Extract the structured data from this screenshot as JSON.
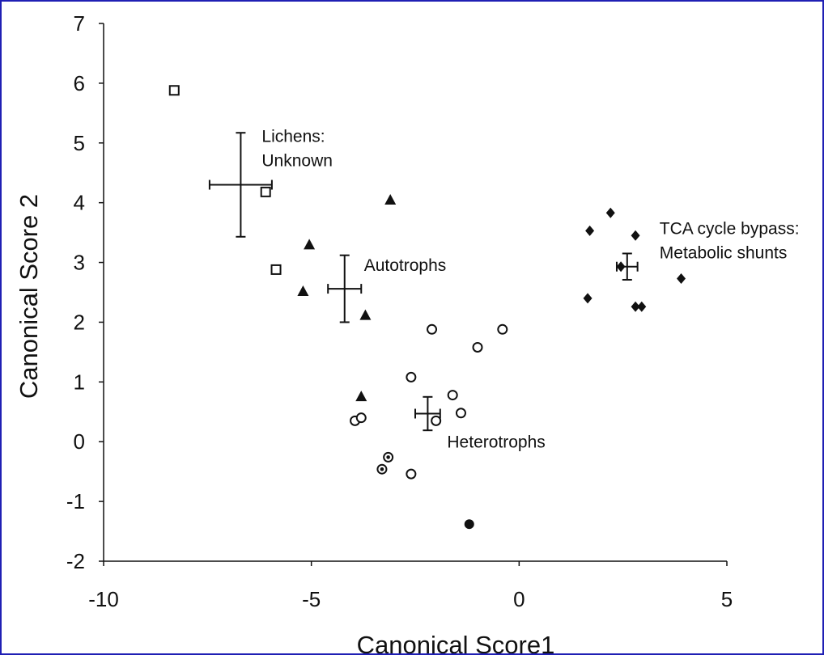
{
  "chart_data": {
    "type": "scatter",
    "xlabel": "Canonical Score1",
    "ylabel": "Canonical Score 2",
    "xlim": [
      -10,
      5
    ],
    "ylim": [
      -2,
      7
    ],
    "xticks": [
      "-10",
      "-5",
      "0",
      "5"
    ],
    "yticks": [
      "-2",
      "-1",
      "0",
      "1",
      "2",
      "3",
      "4",
      "5",
      "6",
      "7"
    ],
    "grid": false,
    "series": [
      {
        "marker": "open-square",
        "color": "#111111",
        "points": [
          [
            -8.3,
            5.88
          ],
          [
            -6.1,
            4.18
          ],
          [
            -5.85,
            2.88
          ]
        ]
      },
      {
        "marker": "filled-triangle",
        "color": "#111111",
        "points": [
          [
            -3.1,
            4.05
          ],
          [
            -5.05,
            3.3
          ],
          [
            -5.2,
            2.52
          ],
          [
            -3.7,
            2.12
          ],
          [
            -3.8,
            0.76
          ]
        ]
      },
      {
        "marker": "open-circle",
        "color": "#111111",
        "points": [
          [
            -2.1,
            1.88
          ],
          [
            -0.4,
            1.88
          ],
          [
            -1.0,
            1.58
          ],
          [
            -2.6,
            1.08
          ],
          [
            -1.6,
            0.78
          ],
          [
            -1.4,
            0.48
          ],
          [
            -2.0,
            0.35
          ],
          [
            -3.95,
            0.35
          ],
          [
            -3.8,
            0.4
          ],
          [
            -2.6,
            -0.54
          ]
        ]
      },
      {
        "marker": "dotted-circle",
        "color": "#111111",
        "points": [
          [
            -3.15,
            -0.26
          ],
          [
            -3.3,
            -0.46
          ]
        ]
      },
      {
        "marker": "filled-circle",
        "color": "#111111",
        "points": [
          [
            -1.2,
            -1.38
          ]
        ]
      },
      {
        "marker": "filled-diamond",
        "color": "#111111",
        "points": [
          [
            2.2,
            3.83
          ],
          [
            1.7,
            3.53
          ],
          [
            2.8,
            3.45
          ],
          [
            2.45,
            2.93
          ],
          [
            1.65,
            2.4
          ],
          [
            3.9,
            2.73
          ],
          [
            2.8,
            2.26
          ],
          [
            2.95,
            2.26
          ]
        ]
      }
    ],
    "group_means": [
      {
        "x": -6.7,
        "y": 4.3,
        "x_err": 0.75,
        "y_err": 0.87,
        "label_lines": [
          "Lichens:",
          "Unknown"
        ]
      },
      {
        "x": -4.2,
        "y": 2.56,
        "x_err": 0.4,
        "y_err": 0.56,
        "label_lines": [
          "Autotrophs"
        ]
      },
      {
        "x": -2.2,
        "y": 0.47,
        "x_err": 0.3,
        "y_err": 0.28,
        "label_lines": [
          "Heterotrophs"
        ]
      },
      {
        "x": 2.6,
        "y": 2.93,
        "x_err": 0.25,
        "y_err": 0.22,
        "label_lines": [
          "TCA cycle bypass:",
          "Metabolic shunts"
        ]
      }
    ]
  }
}
